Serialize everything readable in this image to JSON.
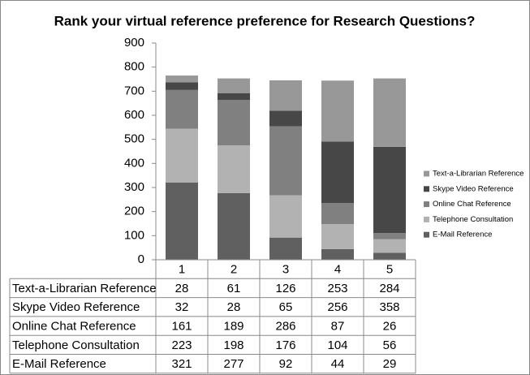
{
  "chart_data": {
    "type": "bar",
    "stacked": true,
    "title": "Rank your virtual reference preference for Research Questions?",
    "categories": [
      "1",
      "2",
      "3",
      "4",
      "5"
    ],
    "series": [
      {
        "name": "E-Mail Reference",
        "color": "#606060",
        "values": [
          321,
          277,
          92,
          44,
          29
        ]
      },
      {
        "name": "Telephone Consultation",
        "color": "#b2b2b2",
        "values": [
          223,
          198,
          176,
          104,
          56
        ]
      },
      {
        "name": "Online Chat Reference",
        "color": "#808080",
        "values": [
          161,
          189,
          286,
          87,
          26
        ]
      },
      {
        "name": "Skype Video Reference",
        "color": "#474747",
        "values": [
          32,
          28,
          65,
          256,
          358
        ]
      },
      {
        "name": "Text-a-Librarian Reference",
        "color": "#989898",
        "values": [
          28,
          61,
          126,
          253,
          284
        ]
      }
    ],
    "ylim": [
      0,
      900
    ],
    "yticks": [
      0,
      100,
      200,
      300,
      400,
      500,
      600,
      700,
      800,
      900
    ],
    "legend": "right",
    "data_table": true
  }
}
